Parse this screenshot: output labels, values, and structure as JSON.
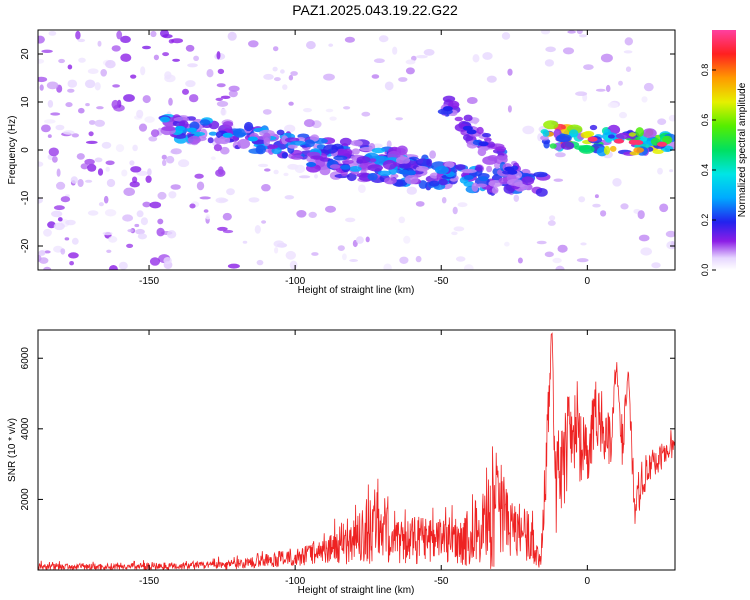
{
  "figure_title": "PAZ1.2025.043.19.22.G22",
  "chart_data": [
    {
      "type": "heatmap",
      "xlabel": "Height of straight line (km)",
      "ylabel": "Frequency (Hz)",
      "xlim": [
        -188,
        30
      ],
      "ylim": [
        -25,
        25
      ],
      "xticks": [
        -150,
        -100,
        -50,
        0
      ],
      "yticks": [
        -20,
        -10,
        0,
        10,
        20
      ],
      "colorbar": {
        "label": "Normalized spectral amplitude",
        "range": [
          0.0,
          0.96
        ],
        "ticks": [
          0.0,
          0.2,
          0.4,
          0.6,
          0.8
        ],
        "tick_labels": [
          "0.0",
          "0.2",
          "0.4",
          "0.6",
          "0.8"
        ]
      },
      "features": [
        {
          "x": [
            -145,
            -55
          ],
          "freq_start": 5,
          "freq_end": -3,
          "peak_amplitude": 0.3
        },
        {
          "x": [
            -95,
            -15
          ],
          "freq_start": -3,
          "freq_end": -7,
          "peak_amplitude": 0.25
        },
        {
          "x": [
            -50,
            -20
          ],
          "freq_start": 10,
          "freq_end": -8,
          "peak_amplitude": 0.2
        },
        {
          "x": [
            -15,
            30
          ],
          "freq_start": 3,
          "freq_end": 1,
          "peak_amplitude": 0.96
        }
      ]
    },
    {
      "type": "line",
      "xlabel": "Height of straight line (km)",
      "ylabel": "SNR (10 * v/v)",
      "xlim": [
        -188,
        30
      ],
      "ylim": [
        0,
        6800
      ],
      "xticks": [
        -150,
        -100,
        -50,
        0
      ],
      "yticks": [
        2000,
        4000,
        6000
      ],
      "series": [
        {
          "color": "#ee2222",
          "x": [
            -188,
            -170,
            -150,
            -130,
            -120,
            -110,
            -100,
            -90,
            -80,
            -72,
            -65,
            -60,
            -50,
            -40,
            -32,
            -25,
            -20,
            -16,
            -14,
            -12,
            -11,
            -10,
            -8,
            -5,
            -3,
            0,
            3,
            5,
            8,
            10,
            12,
            14,
            16,
            20,
            25,
            30
          ],
          "values": [
            80,
            90,
            100,
            130,
            160,
            250,
            350,
            550,
            750,
            1300,
            800,
            850,
            850,
            900,
            1500,
            1300,
            900,
            250,
            3500,
            6800,
            2000,
            2700,
            3300,
            4000,
            3600,
            3400,
            4500,
            4000,
            3700,
            5800,
            3600,
            5600,
            2000,
            2700,
            3200,
            3500
          ],
          "envelope": [
            200,
            210,
            230,
            280,
            350,
            500,
            650,
            1000,
            1500,
            2700,
            1600,
            1700,
            1600,
            1900,
            3500,
            2400,
            1800,
            500,
            5500,
            6800,
            3500,
            4500,
            5200,
            5400,
            5000,
            4700,
            5600,
            5000,
            4800,
            6000,
            4700,
            5800,
            3000,
            3400,
            3700,
            3800
          ]
        }
      ]
    }
  ]
}
